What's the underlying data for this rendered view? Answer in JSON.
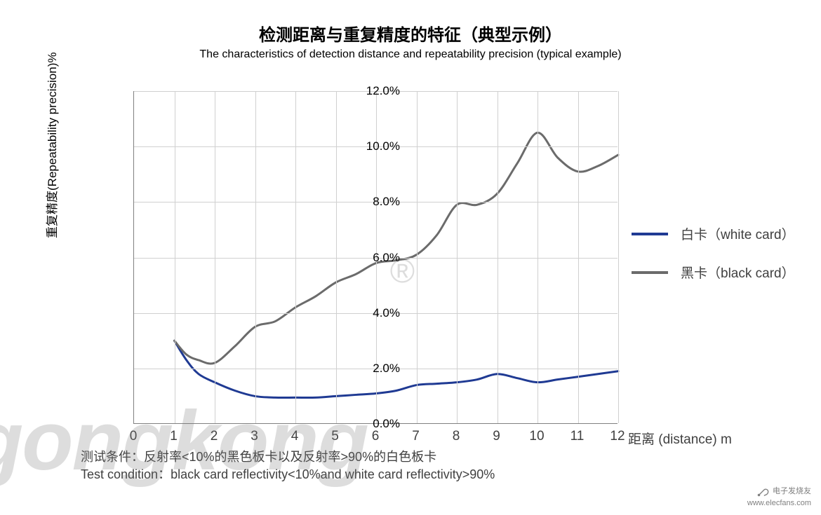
{
  "title_cn": "检测距离与重复精度的特征（典型示例）",
  "title_en": "The characteristics of detection distance and repeatability precision (typical example)",
  "chart": {
    "type": "line",
    "background_color": "#ffffff",
    "grid_color": "#d0d0d0",
    "axis_color": "#808080",
    "x_label": "距离 (distance) m",
    "y_label": "重复精度(Repeatability precision)%",
    "xlim": [
      0,
      12
    ],
    "ylim": [
      0,
      12
    ],
    "xtick_step": 1,
    "ytick_step": 2,
    "ytick_labels": [
      "0.0%",
      "2.0%",
      "4.0%",
      "6.0%",
      "8.0%",
      "10.0%",
      "12.0%"
    ],
    "xtick_labels": [
      "0",
      "1",
      "2",
      "3",
      "4",
      "5",
      "6",
      "7",
      "8",
      "9",
      "10",
      "11",
      "12"
    ],
    "label_fontsize": 17,
    "tick_fontsize": 17,
    "line_width": 3,
    "series": [
      {
        "name": "white_card",
        "label": "白卡（white card）",
        "color": "#1f3a93",
        "x": [
          1,
          1.3,
          1.6,
          2,
          2.5,
          3,
          3.5,
          4,
          4.5,
          5,
          5.5,
          6,
          6.5,
          7,
          7.5,
          8,
          8.5,
          9,
          9.5,
          10,
          10.5,
          11,
          11.5,
          12
        ],
        "y": [
          3.0,
          2.3,
          1.8,
          1.5,
          1.2,
          1.0,
          0.95,
          0.95,
          0.95,
          1.0,
          1.05,
          1.1,
          1.2,
          1.4,
          1.45,
          1.5,
          1.6,
          1.8,
          1.65,
          1.5,
          1.6,
          1.7,
          1.8,
          1.9
        ]
      },
      {
        "name": "black_card",
        "label": "黑卡（black card）",
        "color": "#6b6b6b",
        "x": [
          1,
          1.3,
          1.6,
          2,
          2.5,
          3,
          3.5,
          4,
          4.5,
          5,
          5.5,
          6,
          6.5,
          7,
          7.5,
          8,
          8.5,
          9,
          9.5,
          10,
          10.5,
          11,
          11.5,
          12
        ],
        "y": [
          3.0,
          2.5,
          2.3,
          2.2,
          2.8,
          3.5,
          3.7,
          4.2,
          4.6,
          5.1,
          5.4,
          5.8,
          5.9,
          6.1,
          6.8,
          7.9,
          7.9,
          8.3,
          9.4,
          10.5,
          9.6,
          9.1,
          9.3,
          9.7
        ]
      }
    ]
  },
  "legend": {
    "items": [
      {
        "label": "白卡（white card）",
        "color": "#1f3a93"
      },
      {
        "label": "黑卡（black card）",
        "color": "#6b6b6b"
      }
    ]
  },
  "footnote_cn": "测试条件：反射率<10%的黑色板卡以及反射率>90%的白色板卡",
  "footnote_en": "Test condition：black card reflectivity<10%and white card reflectivity>90%",
  "watermark_text": "gongkong",
  "watermark_reg": "®",
  "source": {
    "name": "电子发烧友",
    "url": "www.elecfans.com"
  }
}
